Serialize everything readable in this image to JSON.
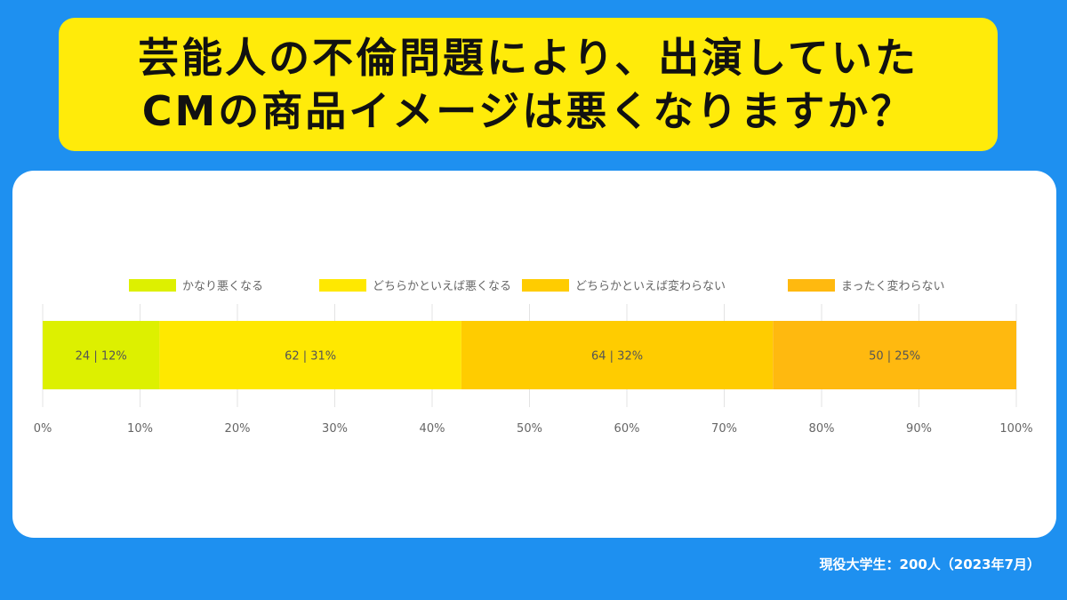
{
  "title": {
    "line1": "芸能人の不倫問題により、出演していた",
    "line2": "CMの商品イメージは悪くなりますか？"
  },
  "source": "現役大学生：200人（2023年7月）",
  "chart_data": {
    "type": "bar",
    "orientation": "horizontal-stacked-100",
    "categories": [
      ""
    ],
    "series": [
      {
        "name": "かなり悪くなる",
        "count": 24,
        "percent": 12,
        "label": "24 | 12%",
        "color": "#ddf000"
      },
      {
        "name": "どちらかといえば悪くなる",
        "count": 62,
        "percent": 31,
        "label": "62 | 31%",
        "color": "#ffe800"
      },
      {
        "name": "どちらかといえば変わらない",
        "count": 64,
        "percent": 32,
        "label": "64 | 32%",
        "color": "#ffcc00"
      },
      {
        "name": "まったく変わらない",
        "count": 50,
        "percent": 25,
        "label": "50 | 25%",
        "color": "#ffb90f"
      }
    ],
    "xlim": [
      0,
      100
    ],
    "xticks": [
      "0%",
      "10%",
      "20%",
      "30%",
      "40%",
      "50%",
      "60%",
      "70%",
      "80%",
      "90%",
      "100%"
    ],
    "grid": true,
    "legend": "top"
  }
}
